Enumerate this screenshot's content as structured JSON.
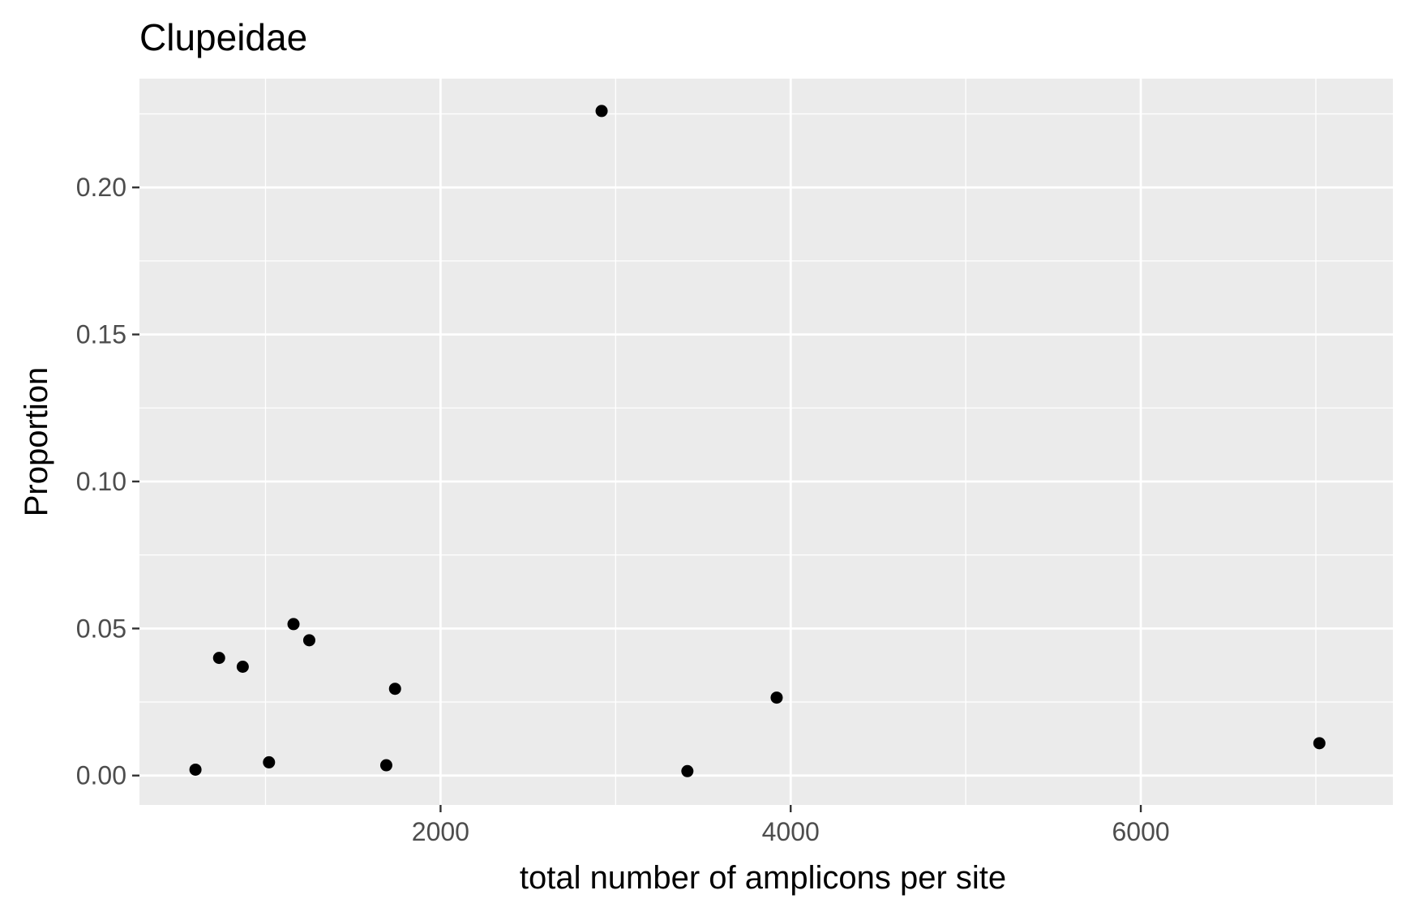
{
  "chart_data": {
    "type": "scatter",
    "title": "Clupeidae",
    "xlabel": "total number of amplicons per site",
    "ylabel": "Proportion",
    "xlim": [
      280,
      7440
    ],
    "ylim": [
      -0.01,
      0.237
    ],
    "x_ticks": [
      2000,
      4000,
      6000
    ],
    "x_tick_labels": [
      "2000",
      "4000",
      "6000"
    ],
    "x_minor_ticks": [
      1000,
      3000,
      5000,
      7000
    ],
    "y_ticks": [
      0.0,
      0.05,
      0.1,
      0.15,
      0.2
    ],
    "y_tick_labels": [
      "0.00",
      "0.05",
      "0.10",
      "0.15",
      "0.20"
    ],
    "y_minor_ticks": [
      0.025,
      0.075,
      0.125,
      0.175,
      0.225
    ],
    "grid": true,
    "panel_color": "#ebebeb",
    "grid_color": "#ffffff",
    "point_color": "#000000",
    "points": [
      {
        "x": 600,
        "y": 0.002
      },
      {
        "x": 735,
        "y": 0.04
      },
      {
        "x": 870,
        "y": 0.037
      },
      {
        "x": 1020,
        "y": 0.0045
      },
      {
        "x": 1160,
        "y": 0.0515
      },
      {
        "x": 1250,
        "y": 0.046
      },
      {
        "x": 1690,
        "y": 0.0035
      },
      {
        "x": 1740,
        "y": 0.0295
      },
      {
        "x": 2920,
        "y": 0.226
      },
      {
        "x": 3410,
        "y": 0.0015
      },
      {
        "x": 3920,
        "y": 0.0265
      },
      {
        "x": 7020,
        "y": 0.011
      }
    ]
  }
}
